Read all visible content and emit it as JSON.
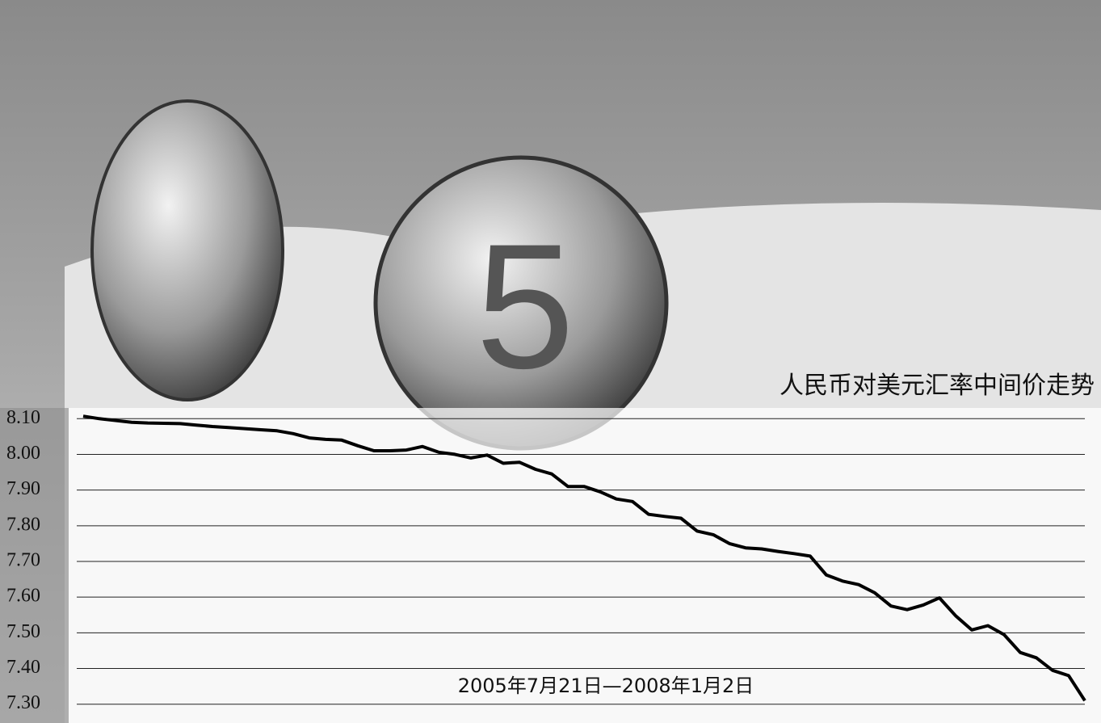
{
  "chart_data": {
    "type": "line",
    "title": "人民币对美元汇率中间价走势",
    "subtitle": "2005年7月21日—2008年1月2日",
    "values": [
      8.107,
      8.1,
      8.095,
      8.09,
      8.088,
      8.087,
      8.086,
      8.082,
      8.078,
      8.075,
      8.072,
      8.069,
      8.066,
      8.058,
      8.046,
      8.042,
      8.04,
      8.024,
      8.01,
      8.01,
      8.012,
      8.022,
      8.006,
      8.0,
      7.99,
      7.998,
      7.975,
      7.978,
      7.958,
      7.945,
      7.91,
      7.91,
      7.895,
      7.875,
      7.868,
      7.832,
      7.826,
      7.821,
      7.785,
      7.775,
      7.75,
      7.738,
      7.735,
      7.728,
      7.722,
      7.715,
      7.662,
      7.645,
      7.635,
      7.612,
      7.575,
      7.565,
      7.578,
      7.598,
      7.548,
      7.508,
      7.52,
      7.495,
      7.445,
      7.43,
      7.395,
      7.38,
      7.31
    ],
    "color": "#000000",
    "ylim": [
      7.27,
      8.13
    ],
    "yticks": [
      {
        "value": 8.1,
        "label": "8.10"
      },
      {
        "value": 8.0,
        "label": "8.00"
      },
      {
        "value": 7.9,
        "label": "7.90"
      },
      {
        "value": 7.8,
        "label": "7.80"
      },
      {
        "value": 7.7,
        "label": "7.70"
      },
      {
        "value": 7.6,
        "label": "7.60"
      },
      {
        "value": 7.5,
        "label": "7.50"
      },
      {
        "value": 7.4,
        "label": "7.40"
      },
      {
        "value": 7.3,
        "label": "7.30"
      }
    ],
    "grid": true
  }
}
